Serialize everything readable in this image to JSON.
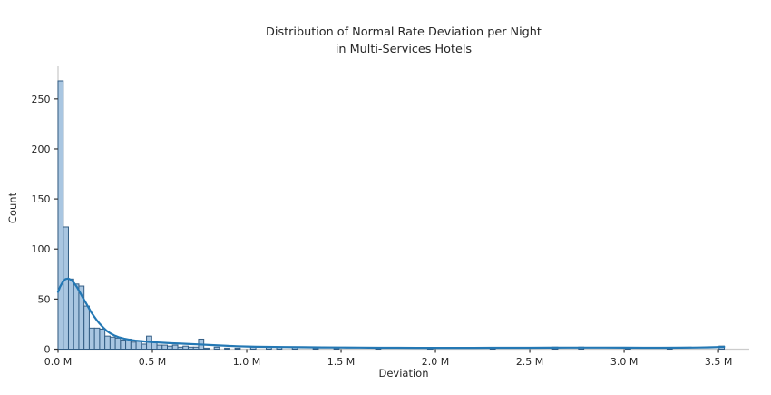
{
  "chart_data": {
    "type": "bar",
    "subtype": "histogram-with-kde",
    "title": "Distribution of Normal Rate Deviation per Night in Multi-Services Hotels",
    "title_line1": "Distribution of Normal Rate Deviation per Night",
    "title_line2": "in Multi-Services Hotels",
    "xlabel": "Deviation",
    "ylabel": "Count",
    "x_tick_values": [
      0,
      0.5,
      1.0,
      1.5,
      2.0,
      2.5,
      3.0,
      3.5
    ],
    "x_tick_labels": [
      "0.0 M",
      "0.5 M",
      "1.0 M",
      "1.5 M",
      "2.0 M",
      "2.5 M",
      "3.0 M",
      "3.5 M"
    ],
    "y_tick_values": [
      0,
      50,
      100,
      150,
      200,
      250
    ],
    "y_tick_labels": [
      "0",
      "50",
      "100",
      "150",
      "200",
      "250"
    ],
    "xlim": [
      0,
      3.663
    ],
    "ylim": [
      0,
      282.5
    ],
    "grid": false,
    "legend": "none",
    "bin_width_M": 0.0276,
    "bars_x_count": [
      [
        0.0,
        268
      ],
      [
        0.0276,
        122
      ],
      [
        0.0552,
        70
      ],
      [
        0.0828,
        65
      ],
      [
        0.1103,
        63
      ],
      [
        0.1379,
        43
      ],
      [
        0.1655,
        21
      ],
      [
        0.1931,
        21
      ],
      [
        0.2207,
        20
      ],
      [
        0.2483,
        13
      ],
      [
        0.2759,
        12
      ],
      [
        0.3034,
        11
      ],
      [
        0.331,
        9
      ],
      [
        0.3586,
        10
      ],
      [
        0.3862,
        7
      ],
      [
        0.4138,
        8
      ],
      [
        0.4414,
        5
      ],
      [
        0.469,
        13
      ],
      [
        0.4966,
        7
      ],
      [
        0.5241,
        4
      ],
      [
        0.5517,
        4
      ],
      [
        0.5793,
        3
      ],
      [
        0.6069,
        4
      ],
      [
        0.6345,
        2
      ],
      [
        0.6621,
        3
      ],
      [
        0.6897,
        2
      ],
      [
        0.7172,
        2
      ],
      [
        0.7448,
        10
      ],
      [
        0.7724,
        1
      ],
      [
        0.8276,
        2
      ],
      [
        0.8828,
        1
      ],
      [
        0.9379,
        1
      ],
      [
        1.0207,
        2
      ],
      [
        1.1034,
        2
      ],
      [
        1.1586,
        2
      ],
      [
        1.2414,
        2
      ],
      [
        1.3517,
        1
      ],
      [
        1.4621,
        1
      ],
      [
        1.6828,
        1
      ],
      [
        1.9586,
        1
      ],
      [
        2.2897,
        1
      ],
      [
        2.6207,
        2
      ],
      [
        2.7586,
        2
      ],
      [
        3.0069,
        1
      ],
      [
        3.2276,
        1
      ],
      [
        3.5034,
        3
      ]
    ],
    "kde_x_count": [
      [
        0.0,
        57
      ],
      [
        0.01,
        62
      ],
      [
        0.025,
        67
      ],
      [
        0.04,
        70
      ],
      [
        0.055,
        70.5
      ],
      [
        0.07,
        69
      ],
      [
        0.085,
        66
      ],
      [
        0.1,
        62
      ],
      [
        0.115,
        57
      ],
      [
        0.13,
        52
      ],
      [
        0.145,
        47
      ],
      [
        0.16,
        42
      ],
      [
        0.175,
        37
      ],
      [
        0.19,
        33
      ],
      [
        0.205,
        29
      ],
      [
        0.22,
        25.5
      ],
      [
        0.24,
        21.5
      ],
      [
        0.26,
        18
      ],
      [
        0.28,
        15.5
      ],
      [
        0.3,
        13.5
      ],
      [
        0.32,
        12
      ],
      [
        0.35,
        10.5
      ],
      [
        0.38,
        9.3
      ],
      [
        0.41,
        8.5
      ],
      [
        0.45,
        7.8
      ],
      [
        0.5,
        7.0
      ],
      [
        0.55,
        6.4
      ],
      [
        0.6,
        5.9
      ],
      [
        0.65,
        5.5
      ],
      [
        0.7,
        5.1
      ],
      [
        0.75,
        4.7
      ],
      [
        0.8,
        4.2
      ],
      [
        0.85,
        3.7
      ],
      [
        0.9,
        3.3
      ],
      [
        0.95,
        2.9
      ],
      [
        1.0,
        2.6
      ],
      [
        1.05,
        2.4
      ],
      [
        1.1,
        2.3
      ],
      [
        1.2,
        2.1
      ],
      [
        1.3,
        1.9
      ],
      [
        1.4,
        1.7
      ],
      [
        1.5,
        1.6
      ],
      [
        1.6,
        1.5
      ],
      [
        1.7,
        1.4
      ],
      [
        1.8,
        1.35
      ],
      [
        1.9,
        1.3
      ],
      [
        2.0,
        1.3
      ],
      [
        2.1,
        1.3
      ],
      [
        2.2,
        1.3
      ],
      [
        2.3,
        1.35
      ],
      [
        2.4,
        1.4
      ],
      [
        2.5,
        1.4
      ],
      [
        2.6,
        1.45
      ],
      [
        2.7,
        1.5
      ],
      [
        2.8,
        1.5
      ],
      [
        2.9,
        1.5
      ],
      [
        3.0,
        1.45
      ],
      [
        3.1,
        1.4
      ],
      [
        3.2,
        1.4
      ],
      [
        3.3,
        1.45
      ],
      [
        3.4,
        1.6
      ],
      [
        3.45,
        1.8
      ],
      [
        3.5,
        2.1
      ],
      [
        3.53,
        2.3
      ]
    ],
    "colors": {
      "bar_fill": "#a9c6e1",
      "bar_edge": "#335d84",
      "kde_line": "#2478b4",
      "spine": "#cccccc",
      "tick": "#333333",
      "text": "#262626"
    }
  }
}
